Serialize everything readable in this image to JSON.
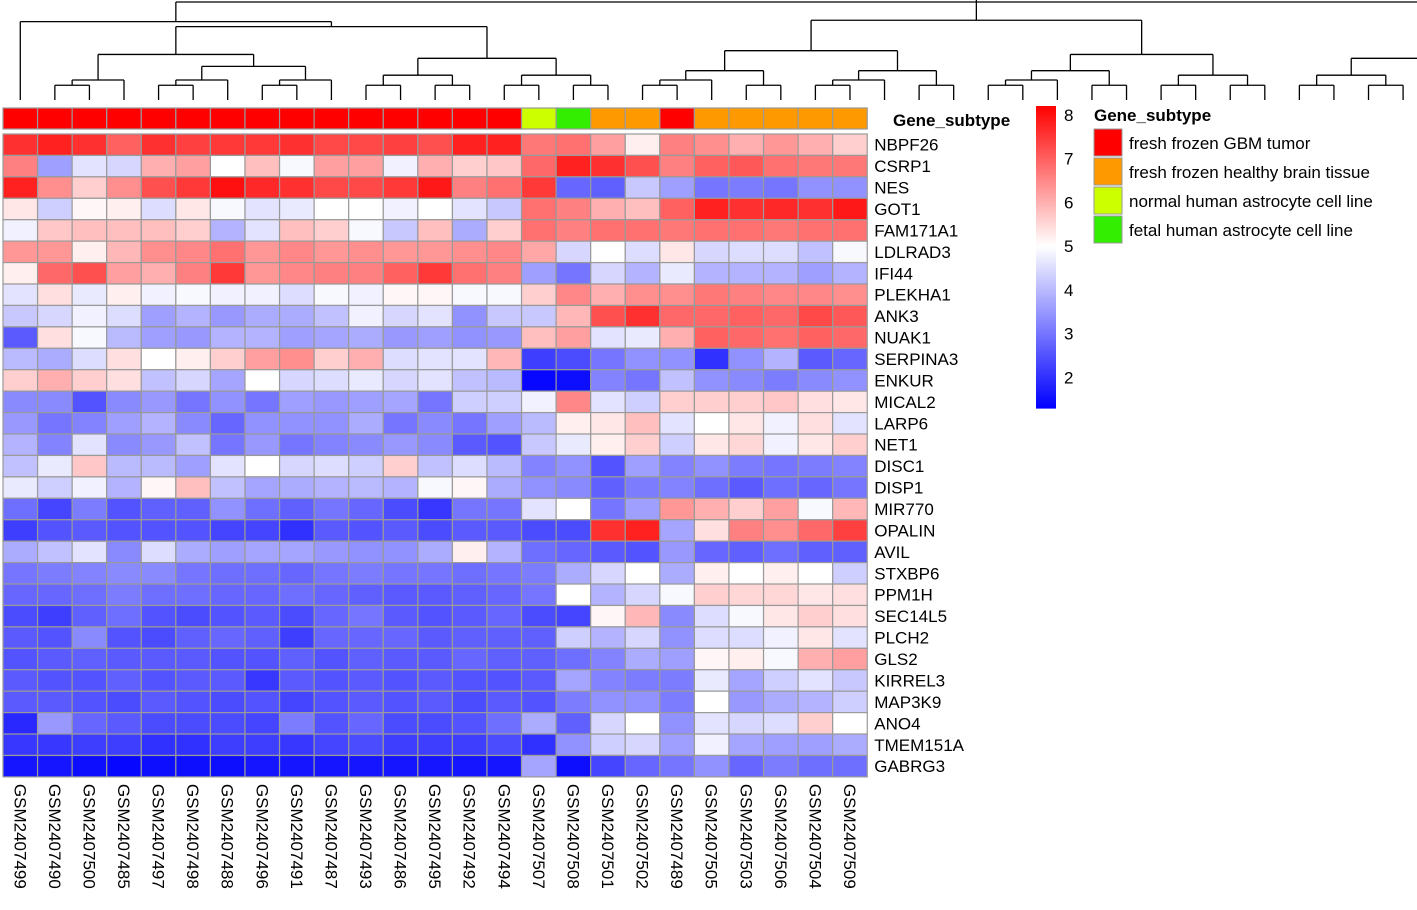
{
  "chart_data": {
    "type": "heatmap",
    "title": "",
    "annotation_title": "Gene_subtype",
    "legend_title": "Gene_subtype",
    "columns": [
      "GSM2407499",
      "GSM2407490",
      "GSM2407500",
      "GSM2407485",
      "GSM2407497",
      "GSM2407498",
      "GSM2407488",
      "GSM2407496",
      "GSM2407491",
      "GSM2407487",
      "GSM2407493",
      "GSM2407486",
      "GSM2407495",
      "GSM2407492",
      "GSM2407494",
      "GSM2407507",
      "GSM2407508",
      "GSM2407501",
      "GSM2407502",
      "GSM2407489",
      "GSM2407505",
      "GSM2407503",
      "GSM2407506",
      "GSM2407504",
      "GSM2407509"
    ],
    "column_groups": [
      0,
      0,
      0,
      0,
      0,
      0,
      0,
      0,
      0,
      0,
      0,
      0,
      0,
      0,
      0,
      2,
      3,
      1,
      1,
      0,
      1,
      1,
      1,
      1,
      1
    ],
    "groups": [
      {
        "label": "fresh frozen GBM tumor",
        "color": "#ff0000"
      },
      {
        "label": "fresh frozen healthy brain tissue",
        "color": "#ff9900"
      },
      {
        "label": "normal human astrocyte cell line",
        "color": "#ccff00"
      },
      {
        "label": "fetal human astrocyte cell line",
        "color": "#33ee00"
      }
    ],
    "rows": [
      "NBPF26",
      "CSRP1",
      "NES",
      "GOT1",
      "FAM171A1",
      "LDLRAD3",
      "IFI44",
      "PLEKHA1",
      "ANK3",
      "NUAK1",
      "SERPINA3",
      "ENKUR",
      "MICAL2",
      "LARP6",
      "NET1",
      "DISC1",
      "DISP1",
      "MIR770",
      "OPALIN",
      "AVIL",
      "STXBP6",
      "PPM1H",
      "SEC14L5",
      "PLCH2",
      "GLS2",
      "KIRREL3",
      "MAP3K9",
      "ANO4",
      "TMEM151A",
      "GABRG3"
    ],
    "values": [
      [
        7.6,
        7.8,
        7.6,
        7.0,
        7.6,
        7.4,
        7.5,
        7.5,
        7.6,
        7.3,
        7.3,
        7.4,
        7.2,
        7.8,
        7.8,
        6.7,
        6.8,
        6.2,
        5.2,
        6.6,
        6.4,
        6.0,
        6.3,
        6.0,
        5.6
      ],
      [
        6.6,
        3.6,
        4.6,
        4.4,
        6.0,
        6.2,
        5.0,
        5.8,
        4.9,
        6.2,
        6.2,
        4.8,
        6.0,
        5.6,
        5.7,
        6.9,
        7.8,
        7.6,
        7.2,
        6.6,
        7.0,
        7.1,
        6.8,
        6.7,
        6.7
      ],
      [
        7.8,
        6.4,
        5.6,
        6.4,
        7.2,
        7.5,
        8.0,
        7.7,
        7.6,
        7.3,
        7.3,
        7.5,
        7.9,
        6.6,
        6.8,
        7.5,
        2.8,
        2.7,
        4.2,
        3.6,
        3.0,
        3.1,
        3.0,
        3.4,
        3.4
      ],
      [
        5.3,
        4.3,
        5.1,
        5.2,
        4.5,
        5.3,
        4.9,
        4.6,
        4.7,
        5.0,
        5.0,
        4.8,
        5.0,
        4.6,
        4.2,
        6.8,
        6.6,
        6.0,
        5.8,
        7.0,
        7.8,
        7.6,
        7.7,
        7.6,
        7.9
      ],
      [
        4.8,
        5.7,
        5.8,
        5.8,
        5.8,
        5.6,
        3.9,
        4.6,
        5.8,
        5.6,
        4.9,
        4.2,
        5.8,
        3.8,
        5.6,
        6.8,
        6.6,
        6.8,
        6.8,
        6.7,
        6.8,
        6.8,
        6.7,
        6.8,
        6.8
      ],
      [
        6.3,
        6.3,
        5.2,
        5.9,
        6.4,
        6.5,
        6.8,
        6.3,
        6.5,
        6.3,
        6.4,
        6.3,
        6.3,
        6.4,
        6.5,
        6.1,
        4.4,
        5.0,
        4.5,
        5.3,
        4.4,
        4.5,
        4.5,
        4.1,
        4.9
      ],
      [
        5.2,
        6.9,
        7.2,
        6.2,
        6.0,
        6.6,
        7.5,
        6.3,
        6.5,
        6.6,
        6.6,
        7.0,
        7.5,
        6.8,
        6.6,
        3.6,
        3.0,
        4.4,
        3.9,
        4.7,
        3.9,
        3.9,
        3.9,
        3.6,
        3.9
      ],
      [
        4.6,
        5.4,
        4.7,
        5.2,
        4.8,
        4.9,
        4.8,
        4.8,
        4.5,
        4.9,
        4.8,
        5.1,
        5.1,
        4.9,
        4.9,
        5.6,
        6.5,
        6.0,
        6.4,
        6.4,
        6.7,
        6.6,
        6.5,
        6.5,
        6.4
      ],
      [
        4.2,
        4.4,
        4.8,
        4.5,
        3.6,
        3.9,
        3.5,
        3.8,
        3.8,
        4.1,
        4.8,
        4.4,
        4.6,
        3.4,
        4.2,
        4.2,
        5.9,
        7.2,
        7.6,
        6.9,
        6.9,
        7.0,
        6.9,
        7.3,
        7.1
      ],
      [
        2.6,
        5.4,
        4.9,
        4.0,
        3.6,
        3.5,
        3.9,
        3.9,
        3.6,
        3.7,
        3.8,
        3.5,
        3.6,
        3.4,
        3.5,
        5.8,
        6.2,
        4.6,
        4.7,
        6.0,
        7.0,
        6.9,
        6.8,
        7.0,
        6.9
      ],
      [
        4.0,
        3.8,
        4.5,
        5.4,
        5.0,
        5.2,
        5.6,
        6.2,
        6.4,
        5.6,
        6.0,
        4.5,
        4.6,
        4.6,
        5.9,
        2.2,
        2.4,
        3.0,
        3.4,
        3.4,
        2.0,
        3.4,
        3.9,
        2.6,
        2.8
      ],
      [
        5.6,
        6.0,
        5.6,
        5.4,
        4.1,
        4.4,
        3.7,
        5.0,
        4.4,
        4.5,
        4.7,
        4.4,
        4.6,
        4.1,
        4.0,
        1.4,
        1.5,
        3.2,
        3.0,
        4.1,
        3.4,
        3.3,
        3.1,
        3.3,
        3.4
      ],
      [
        3.3,
        3.3,
        2.5,
        3.3,
        3.5,
        3.0,
        3.4,
        3.0,
        3.6,
        3.5,
        3.6,
        3.7,
        3.0,
        4.3,
        4.3,
        4.8,
        6.5,
        4.6,
        4.3,
        5.6,
        5.6,
        5.6,
        5.7,
        5.4,
        5.3
      ],
      [
        3.5,
        3.0,
        3.2,
        3.6,
        3.9,
        3.3,
        2.8,
        3.4,
        3.4,
        3.4,
        3.8,
        3.0,
        3.3,
        3.0,
        3.6,
        4.0,
        5.2,
        5.3,
        5.8,
        4.6,
        5.0,
        5.3,
        4.8,
        5.4,
        4.6
      ],
      [
        3.9,
        3.2,
        4.6,
        3.3,
        3.5,
        4.1,
        3.0,
        3.5,
        3.0,
        3.2,
        3.3,
        3.5,
        3.3,
        2.6,
        2.5,
        4.2,
        4.7,
        5.2,
        5.6,
        4.3,
        5.3,
        5.5,
        4.8,
        5.3,
        5.6
      ],
      [
        4.1,
        4.7,
        5.7,
        4.0,
        4.0,
        3.6,
        4.6,
        5.0,
        4.4,
        4.5,
        4.3,
        5.6,
        4.1,
        4.5,
        4.0,
        3.2,
        3.4,
        2.5,
        3.6,
        3.2,
        3.4,
        3.1,
        3.0,
        3.1,
        3.2
      ],
      [
        4.7,
        4.3,
        4.8,
        3.9,
        5.1,
        5.8,
        4.1,
        3.7,
        3.8,
        3.9,
        4.0,
        3.9,
        4.9,
        5.1,
        3.8,
        3.4,
        3.3,
        2.7,
        3.1,
        3.2,
        2.9,
        2.6,
        2.9,
        2.8,
        3.0
      ],
      [
        2.9,
        2.3,
        3.1,
        2.5,
        2.7,
        2.7,
        3.4,
        2.9,
        2.7,
        3.0,
        2.8,
        2.4,
        2.1,
        3.0,
        3.0,
        4.6,
        5.0,
        3.0,
        3.6,
        6.3,
        6.0,
        5.6,
        6.2,
        4.9,
        5.9
      ],
      [
        2.2,
        2.5,
        2.6,
        2.5,
        2.5,
        2.5,
        2.3,
        2.3,
        2.0,
        2.6,
        2.5,
        2.6,
        2.4,
        2.6,
        2.6,
        2.4,
        2.4,
        7.6,
        7.8,
        3.7,
        5.4,
        6.6,
        6.4,
        6.9,
        7.4
      ],
      [
        3.8,
        4.1,
        4.6,
        3.3,
        4.5,
        3.8,
        3.6,
        3.7,
        3.7,
        3.5,
        3.4,
        3.4,
        3.8,
        5.2,
        3.9,
        2.9,
        2.8,
        2.6,
        2.5,
        3.5,
        2.8,
        2.7,
        2.9,
        2.7,
        2.7
      ],
      [
        3.0,
        3.1,
        3.2,
        3.3,
        3.3,
        3.0,
        2.9,
        2.9,
        2.8,
        3.0,
        3.1,
        3.0,
        3.0,
        2.9,
        3.0,
        3.1,
        3.8,
        4.4,
        5.0,
        3.8,
        5.2,
        5.0,
        5.2,
        5.0,
        4.3
      ],
      [
        2.8,
        2.8,
        2.9,
        3.1,
        2.9,
        2.9,
        2.8,
        2.8,
        2.9,
        2.8,
        2.7,
        2.6,
        2.6,
        2.7,
        2.8,
        3.0,
        5.0,
        3.9,
        4.4,
        4.9,
        5.6,
        5.5,
        5.5,
        5.3,
        5.4
      ],
      [
        2.4,
        2.2,
        2.7,
        2.9,
        2.5,
        2.4,
        2.5,
        2.6,
        2.4,
        2.8,
        3.0,
        2.6,
        2.5,
        2.6,
        2.8,
        2.4,
        2.3,
        5.1,
        5.9,
        3.3,
        4.5,
        4.9,
        5.3,
        5.6,
        5.4
      ],
      [
        2.6,
        2.5,
        3.3,
        2.5,
        2.4,
        2.7,
        2.8,
        2.7,
        2.2,
        2.8,
        2.8,
        2.8,
        2.6,
        2.7,
        2.7,
        2.7,
        4.3,
        3.9,
        4.4,
        3.4,
        4.5,
        4.5,
        4.8,
        5.3,
        4.6
      ],
      [
        2.5,
        2.6,
        2.7,
        2.6,
        2.6,
        2.6,
        2.5,
        2.5,
        2.7,
        2.5,
        2.7,
        2.6,
        2.6,
        2.8,
        2.7,
        2.7,
        2.9,
        3.2,
        3.8,
        3.6,
        5.1,
        5.2,
        4.9,
        6.0,
        6.2
      ],
      [
        2.6,
        2.5,
        2.5,
        2.7,
        2.5,
        2.6,
        2.6,
        2.1,
        2.6,
        2.5,
        2.6,
        2.5,
        2.6,
        2.5,
        2.5,
        2.6,
        3.7,
        3.2,
        3.1,
        3.1,
        4.7,
        3.7,
        4.3,
        4.6,
        4.2
      ],
      [
        2.6,
        2.6,
        2.5,
        2.4,
        2.6,
        2.5,
        2.4,
        2.5,
        2.3,
        2.5,
        2.6,
        2.5,
        2.6,
        2.4,
        2.6,
        2.5,
        3.1,
        3.4,
        3.4,
        3.1,
        5.0,
        3.5,
        3.8,
        3.9,
        4.3
      ],
      [
        1.9,
        3.5,
        2.8,
        2.6,
        2.4,
        2.4,
        2.4,
        2.3,
        3.1,
        2.5,
        2.8,
        2.4,
        2.4,
        2.5,
        2.9,
        3.8,
        2.7,
        4.4,
        5.0,
        3.4,
        4.6,
        4.4,
        4.5,
        5.6,
        5.0
      ],
      [
        2.1,
        2.1,
        2.2,
        2.2,
        2.0,
        2.0,
        2.2,
        2.2,
        2.1,
        2.3,
        2.4,
        2.2,
        2.2,
        2.2,
        2.4,
        2.0,
        3.4,
        4.3,
        4.4,
        3.6,
        4.8,
        3.7,
        3.6,
        3.6,
        3.8
      ],
      [
        1.6,
        1.6,
        1.5,
        1.4,
        1.5,
        1.5,
        1.5,
        1.6,
        1.6,
        1.6,
        1.6,
        1.6,
        1.6,
        1.6,
        1.6,
        3.7,
        1.5,
        2.3,
        2.8,
        3.0,
        3.4,
        2.8,
        3.1,
        2.9,
        2.9
      ]
    ],
    "color_scale": {
      "min": 1.3,
      "mid": 5,
      "max": 8.2,
      "low_color": "#0000ff",
      "mid_color": "#ffffff",
      "high_color": "#ff0000",
      "ticks": [
        2,
        3,
        4,
        5,
        6,
        7,
        8
      ]
    },
    "column_dendrogram": [
      [
        0,
        [
          [
            3,
            6
          ],
          8
        ]
      ],
      [
        [
          19,
          [
            15,
            16
          ]
        ],
        17
      ]
    ]
  }
}
